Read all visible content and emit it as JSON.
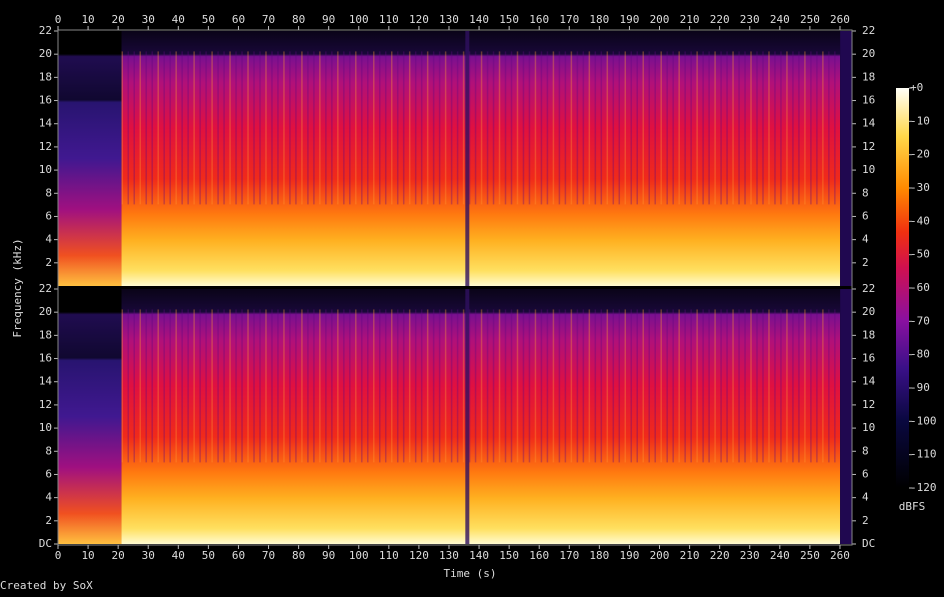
{
  "chart_data": {
    "type": "spectrogram",
    "xlabel": "Time (s)",
    "ylabel": "Frequency (kHz)",
    "xlim": [
      0,
      264
    ],
    "xticks": [
      0,
      10,
      20,
      30,
      40,
      50,
      60,
      70,
      80,
      90,
      100,
      110,
      120,
      130,
      140,
      150,
      160,
      170,
      180,
      190,
      200,
      210,
      220,
      230,
      240,
      250,
      260
    ],
    "channels": [
      {
        "ylim": [
          0,
          22
        ],
        "yticks": [
          2,
          4,
          6,
          8,
          10,
          12,
          14,
          16,
          18,
          20,
          22
        ]
      },
      {
        "ylim": [
          0,
          22
        ],
        "yticks": [
          {
            "value": 0,
            "label": "DC"
          },
          2,
          4,
          6,
          8,
          10,
          12,
          14,
          16,
          18,
          20,
          22
        ]
      }
    ],
    "colorbar": {
      "label": "dBFS",
      "lim": [
        -120,
        0
      ],
      "ticks": [
        {
          "value": 0,
          "label": "+0"
        },
        -10,
        -20,
        -30,
        -40,
        -50,
        -60,
        -70,
        -80,
        -90,
        -100,
        -110,
        -120
      ]
    },
    "credit": "Created by SoX"
  }
}
